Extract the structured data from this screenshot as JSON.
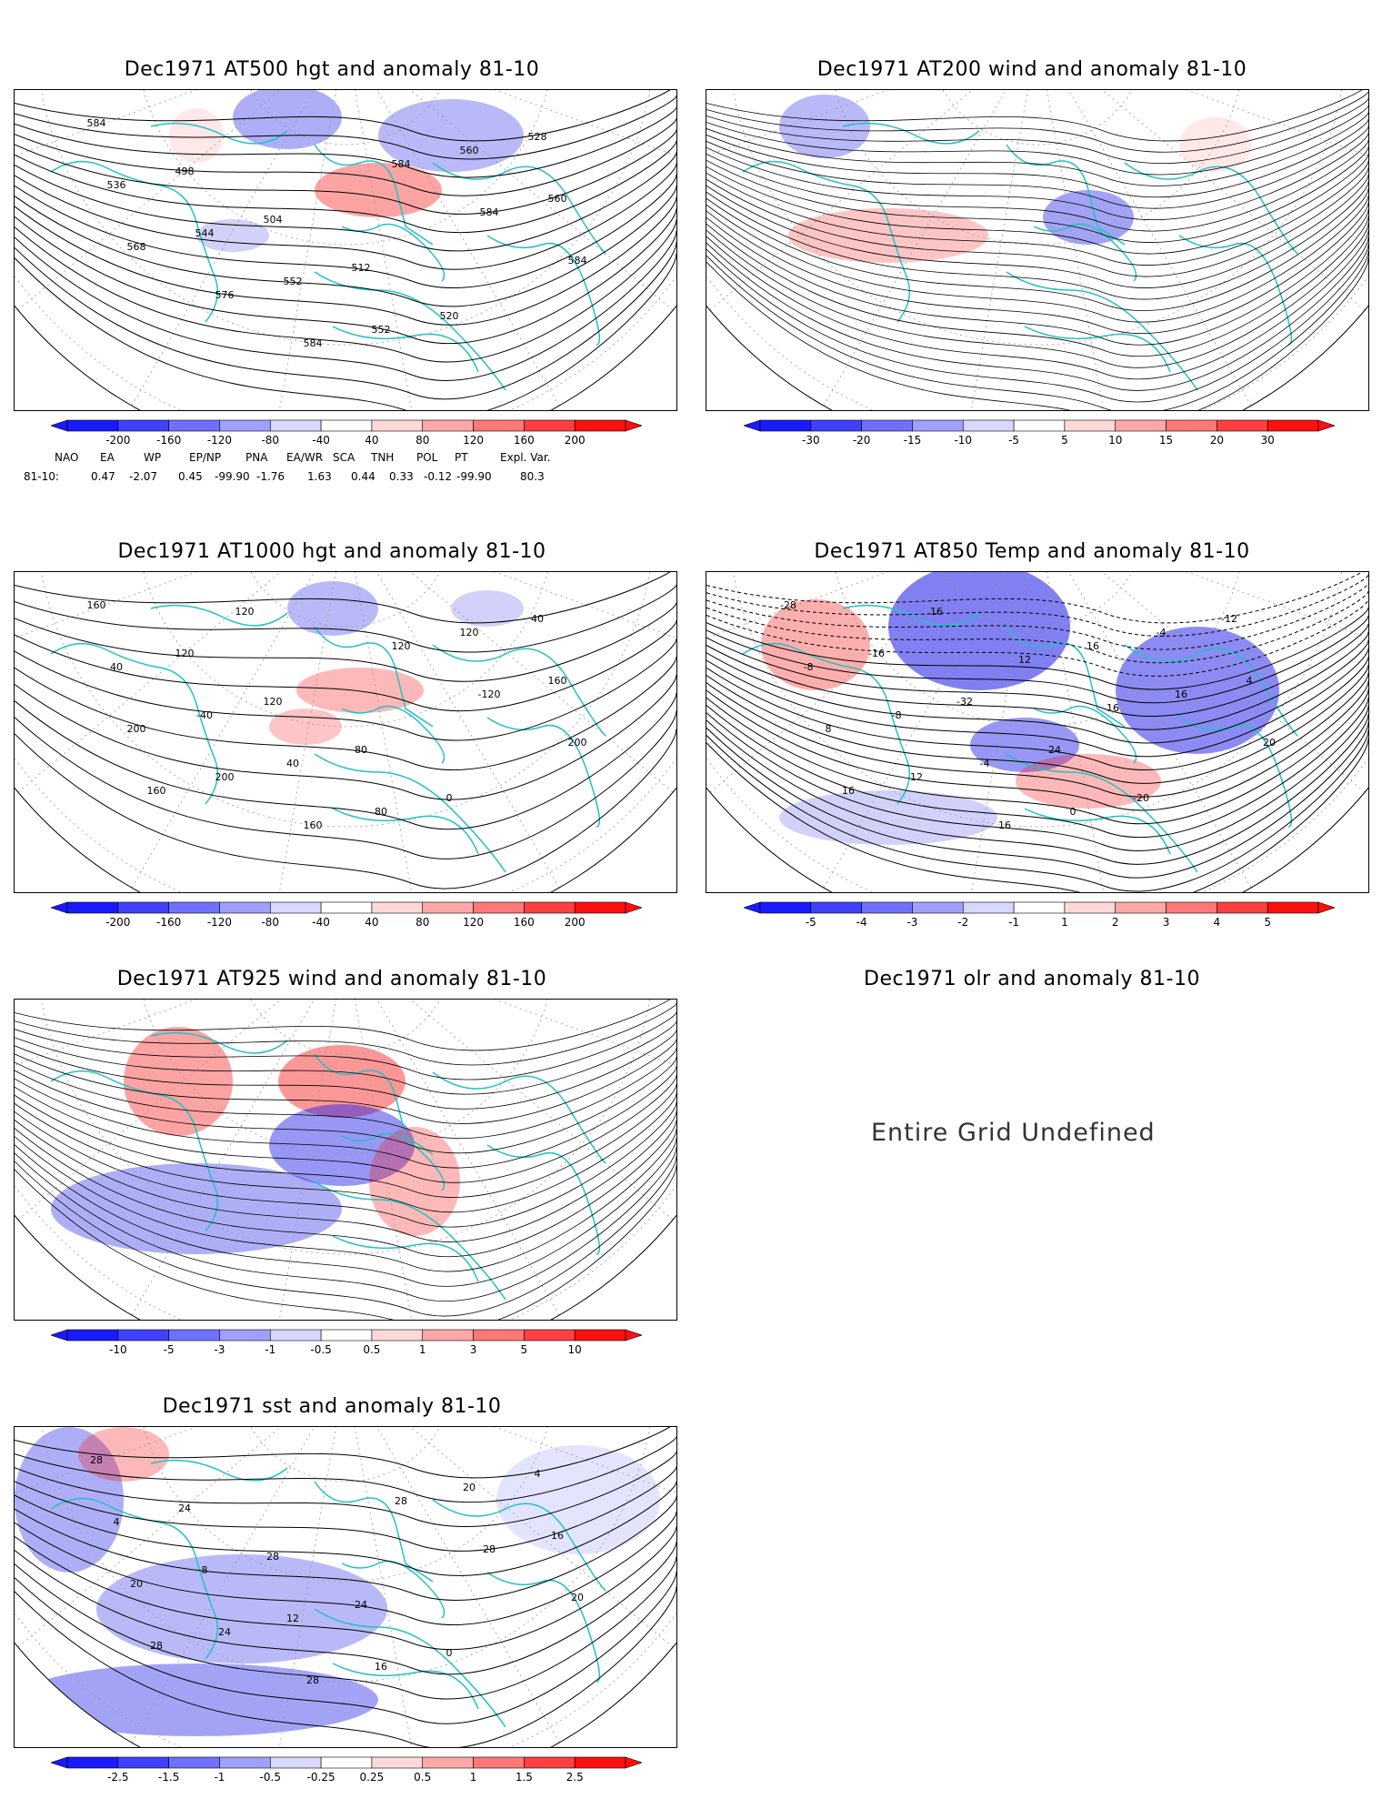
{
  "panels": [
    {
      "id": "p1",
      "title": "Dec1971 AT500 hgt and anomaly 81-10",
      "contour_labels": [
        "584",
        "498",
        "504",
        "512",
        "520",
        "528",
        "536",
        "544",
        "552",
        "552",
        "560",
        "560",
        "568",
        "576",
        "584",
        "584",
        "584",
        "584"
      ],
      "colorbar": [
        "-200",
        "-160",
        "-120",
        "-80",
        "-40",
        "40",
        "80",
        "120",
        "160",
        "200"
      ]
    },
    {
      "id": "p2",
      "title": "Dec1971 AT200 wind and anomaly 81-10",
      "contour_labels": [],
      "colorbar": [
        "-30",
        "-20",
        "-15",
        "-10",
        "-5",
        "5",
        "10",
        "15",
        "20",
        "30"
      ]
    },
    {
      "id": "p3",
      "title": "Dec1971 AT1000 hgt and anomaly 81-10",
      "contour_labels": [
        "160",
        "120",
        "120",
        "80",
        "0",
        "40",
        "40",
        "-40",
        "40",
        "80",
        "120",
        "160",
        "200",
        "200",
        "160",
        "120",
        "-120",
        "200",
        "160",
        "120"
      ],
      "colorbar": [
        "-200",
        "-160",
        "-120",
        "-80",
        "-40",
        "40",
        "80",
        "120",
        "160",
        "200"
      ]
    },
    {
      "id": "p4",
      "title": "Dec1971 AT850 Temp and anomaly 81-10",
      "contour_labels": [
        "-28",
        "-16",
        "-32",
        "-24",
        "-20",
        "-12",
        "-8",
        "-8",
        "-4",
        "0",
        "-4",
        "4",
        "8",
        "12",
        "16",
        "16",
        "16",
        "20",
        "16",
        "16",
        "12",
        "16"
      ],
      "colorbar": [
        "-5",
        "-4",
        "-3",
        "-2",
        "-1",
        "1",
        "2",
        "3",
        "4",
        "5"
      ]
    },
    {
      "id": "p5",
      "title": "Dec1971 AT925 wind and anomaly 81-10",
      "contour_labels": [],
      "colorbar": [
        "-10",
        "-5",
        "-3",
        "-1",
        "-0.5",
        "0.5",
        "1",
        "3",
        "5",
        "10"
      ]
    },
    {
      "id": "p6",
      "title": "Dec1971 olr and anomaly 81-10",
      "message": "Entire Grid Undefined"
    },
    {
      "id": "p7",
      "title": "Dec1971 sst and anomaly 81-10",
      "contour_labels": [
        "28",
        "24",
        "28",
        "24",
        "0",
        "4",
        "4",
        "8",
        "12",
        "16",
        "20",
        "16",
        "20",
        "24",
        "28",
        "28",
        "28",
        "20",
        "28"
      ],
      "colorbar": [
        "-2.5",
        "-1.5",
        "-1",
        "-0.5",
        "-0.25",
        "0.25",
        "0.5",
        "1",
        "1.5",
        "2.5"
      ]
    }
  ],
  "indices": {
    "headers": [
      "NAO",
      "EA",
      "WP",
      "EP/NP",
      "PNA",
      "EA/WR",
      "SCA",
      "TNH",
      "POL",
      "PT",
      "Expl. Var."
    ],
    "row_label": "81-10:",
    "values": [
      "0.47",
      "-2.07",
      "0.45",
      "-99.90",
      "-1.76",
      "1.63",
      "0.44",
      "0.33",
      "-0.12",
      "-99.90",
      "80.3"
    ]
  },
  "colors": {
    "coast": "#22c2c2",
    "neg_strong": "#1818e8",
    "neg_weak": "#d8d8ff",
    "pos_weak": "#ffd8d8",
    "pos_strong": "#f81818"
  }
}
